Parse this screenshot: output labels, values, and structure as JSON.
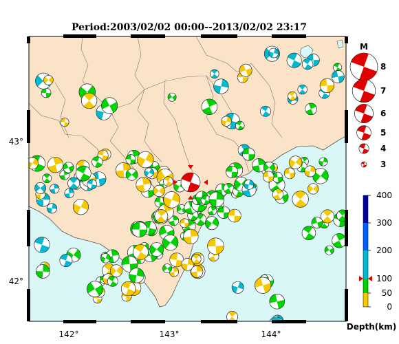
{
  "title": "Period:2003/02/02 00:00--2013/02/02 23:17",
  "x_ticks": [
    "142°",
    "143°",
    "144°"
  ],
  "y_ticks": [
    "43°",
    "42°"
  ],
  "magnitude_legend": {
    "title": "M",
    "items": [
      {
        "label": "8",
        "value": 8
      },
      {
        "label": "7",
        "value": 7
      },
      {
        "label": "6",
        "value": 6
      },
      {
        "label": "5",
        "value": 5
      },
      {
        "label": "4",
        "value": 4
      },
      {
        "label": "3",
        "value": 3
      }
    ]
  },
  "depth_colorbar": {
    "label": "Depth(km)",
    "tick_labels": [
      "400",
      "300",
      "200",
      "100",
      "50",
      "0"
    ],
    "marker_value": 100,
    "bands": [
      {
        "from": 0,
        "to": 50,
        "color": "#f5c800"
      },
      {
        "from": 50,
        "to": 100,
        "color": "#00d400"
      },
      {
        "from": 100,
        "to": 200,
        "color": "#00b8d0"
      },
      {
        "from": 200,
        "to": 300,
        "color": "#0060ff"
      },
      {
        "from": 300,
        "to": 400,
        "color": "#0000a0"
      }
    ]
  },
  "colors": {
    "land": "#fbe3c8",
    "sea": "#d9f7f7",
    "main_event": "#e00000",
    "shallow": "#f5c800",
    "intermediate": "#00d400",
    "deep": "#00b8d0"
  },
  "main_event": {
    "lon": 143.22,
    "lat": 42.72,
    "magnitude": 6.9,
    "depth_km": 100
  }
}
